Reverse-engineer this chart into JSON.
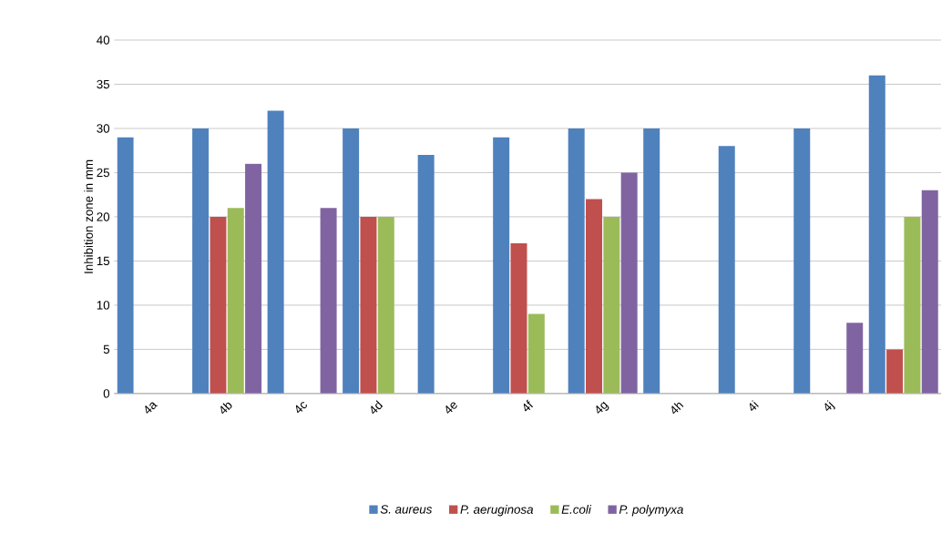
{
  "chart_data": {
    "type": "bar",
    "ylabel": "Inhibition zone in mm",
    "categories": [
      "4a",
      "4b",
      "4c",
      "4d",
      "4e",
      "4f",
      "4g",
      "4h",
      "4i",
      "4j",
      null
    ],
    "series": [
      {
        "name": "S. aureus",
        "color": "#4f81bd",
        "values": [
          29,
          30,
          32,
          30,
          27,
          29,
          30,
          30,
          28,
          30,
          36
        ]
      },
      {
        "name": "P. aeruginosa",
        "color": "#c0504d",
        "values": [
          null,
          20,
          null,
          20,
          null,
          17,
          22,
          null,
          null,
          null,
          5
        ]
      },
      {
        "name": "E.coli",
        "color": "#9bbb59",
        "values": [
          null,
          21,
          null,
          20,
          null,
          9,
          20,
          null,
          null,
          null,
          20
        ]
      },
      {
        "name": "P. polymyxa",
        "color": "#8064a2",
        "values": [
          null,
          26,
          21,
          null,
          null,
          null,
          25,
          null,
          null,
          8,
          23
        ]
      }
    ],
    "ylim": [
      0,
      40
    ],
    "yticks": [
      0,
      5,
      10,
      15,
      20,
      25,
      30,
      35,
      40
    ],
    "grid": "y",
    "legend": "bottom"
  }
}
